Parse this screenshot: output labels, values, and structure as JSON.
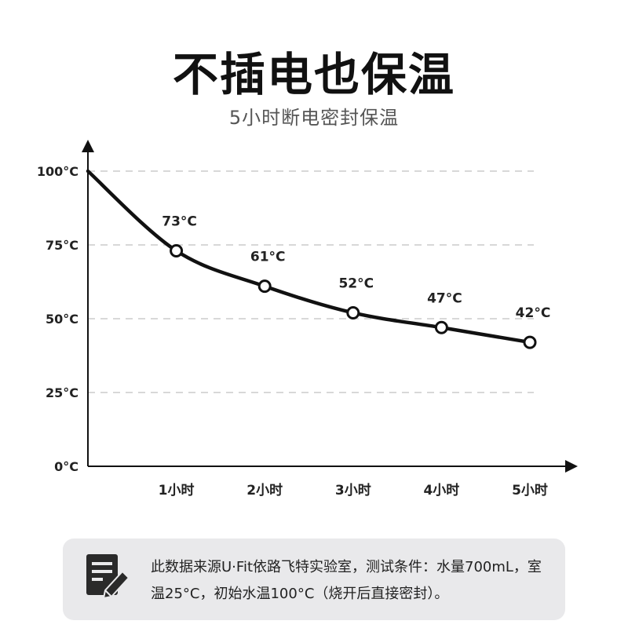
{
  "title": "不插电也保温",
  "subtitle": "5小时断电密封保温",
  "chart_data": {
    "type": "line",
    "title": "",
    "xlabel": "",
    "ylabel": "",
    "x_tick_labels": [
      "1小时",
      "2小时",
      "3小时",
      "4小时",
      "5小时"
    ],
    "y_tick_labels": [
      "0°C",
      "25°C",
      "50°C",
      "75°C",
      "100°C"
    ],
    "xlim": [
      0,
      5
    ],
    "ylim": [
      0,
      100
    ],
    "grid": "horizontal-dashed",
    "series": [
      {
        "x": [
          0,
          1,
          2,
          3,
          4,
          5
        ],
        "values": [
          100,
          73,
          61,
          52,
          47,
          42
        ],
        "marked_points": [
          1,
          2,
          3,
          4,
          5
        ],
        "point_labels": [
          "",
          "73°C",
          "61°C",
          "52°C",
          "47°C",
          "42°C"
        ]
      }
    ],
    "colors": {
      "line": "#111111",
      "grid": "#cccccc",
      "marker_fill": "#ffffff"
    }
  },
  "note": {
    "icon": "document-edit-icon",
    "text": "此数据来源U·Fit依路飞特实验室，测试条件：水量700mL，室温25°C，初始水温100°C（烧开后直接密封）。"
  }
}
